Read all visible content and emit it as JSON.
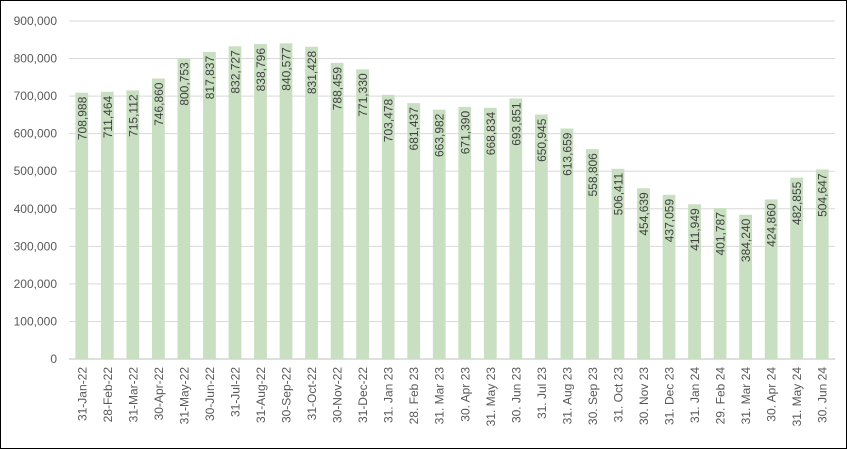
{
  "chart_data": {
    "type": "bar",
    "title": "",
    "xlabel": "",
    "ylabel": "",
    "ylim": [
      0,
      900000
    ],
    "y_ticks": [
      0,
      100000,
      200000,
      300000,
      400000,
      500000,
      600000,
      700000,
      800000,
      900000
    ],
    "y_tick_labels": [
      "0",
      "100,000",
      "200,000",
      "300,000",
      "400,000",
      "500,000",
      "600,000",
      "700,000",
      "800,000",
      "900,000"
    ],
    "grid": true,
    "legend": "none",
    "bar_color": "#c9dfc1",
    "categories": [
      "31-Jan-22",
      "28-Feb-22",
      "31-Mar-22",
      "30-Apr-22",
      "31-May-22",
      "30-Jun-22",
      "31-Jul-22",
      "31-Aug-22",
      "30-Sep-22",
      "31-Oct-22",
      "30-Nov-22",
      "31-Dec-22",
      "31. Jan 23",
      "28. Feb 23",
      "31. Mar 23",
      "30. Apr 23",
      "31. May 23",
      "30. Jun 23",
      "31. Jul 23",
      "31. Aug 23",
      "30. Sep 23",
      "31. Oct 23",
      "30. Nov 23",
      "31. Dec 23",
      "31. Jan 24",
      "29. Feb 24",
      "31. Mar 24",
      "30. Apr 24",
      "31. May 24",
      "30. Jun 24"
    ],
    "values": [
      708988,
      711464,
      715112,
      746860,
      800753,
      817837,
      832727,
      838796,
      840577,
      831428,
      788459,
      771330,
      703478,
      681437,
      663982,
      671390,
      668834,
      693851,
      650945,
      613659,
      558806,
      506411,
      454639,
      437059,
      411949,
      401787,
      384240,
      424860,
      482855,
      504647
    ],
    "value_labels": [
      "708,988",
      "711,464",
      "715,112",
      "746,860",
      "800,753",
      "817,837",
      "832,727",
      "838,796",
      "840,577",
      "831,428",
      "788,459",
      "771,330",
      "703,478",
      "681,437",
      "663,982",
      "671,390",
      "668,834",
      "693,851",
      "650,945",
      "613,659",
      "558,806",
      "506,411",
      "454,639",
      "437,059",
      "411,949",
      "401,787",
      "384,240",
      "424,860",
      "482,855",
      "504,647"
    ]
  }
}
